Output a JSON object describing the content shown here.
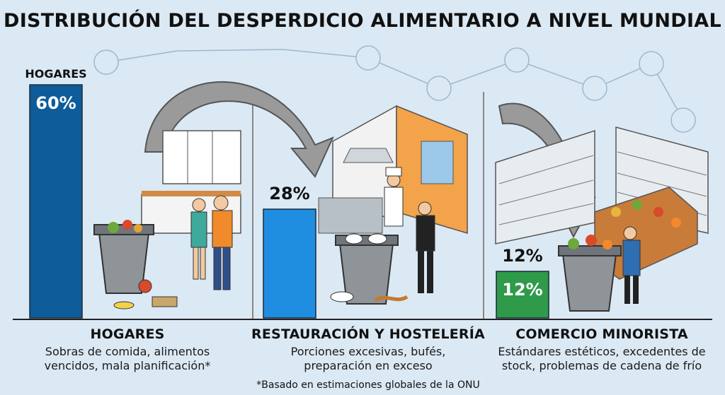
{
  "title": "DISTRIBUCIÓN DEL DESPERDICIO ALIMENTARIO A NIVEL MUNDIAL",
  "footnote": "*Basado en estimaciones globales de la ONU",
  "colors": {
    "hogares": "#0e5c99",
    "restauracion": "#1f8ee0",
    "comercio": "#2e9a4a",
    "background": "#dbe9f4",
    "arrow": "#9a9a9a"
  },
  "chart_data": {
    "type": "bar",
    "categories": [
      "HOGARES",
      "RESTAURACIÓN Y HOSTELERÍA",
      "COMERCIO MINORISTA"
    ],
    "values": [
      60,
      28,
      12
    ],
    "ylim": [
      0,
      60
    ],
    "grid": false,
    "data_labels": [
      "60%",
      "28%",
      "12%"
    ],
    "top_labels": [
      "HOGARES",
      "28%",
      "12%"
    ],
    "descriptions": [
      [
        "Sobras de comida, alimentos",
        "vencidos, mala planificación*"
      ],
      [
        "Porciones excesivas, bufés,",
        "preparación en exceso"
      ],
      [
        "Estándares estéticos, excedentes de",
        "stock, problemas de cadena de frío"
      ]
    ]
  }
}
